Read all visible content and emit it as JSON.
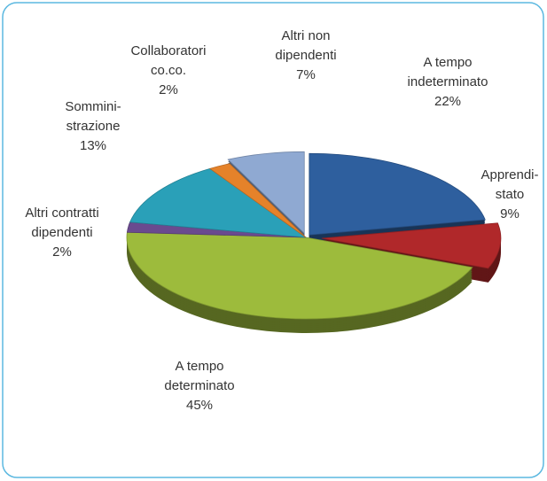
{
  "chart_data": {
    "type": "pie",
    "categories": [
      "A tempo\nindeterminato",
      "Apprendi-\nstato",
      "A tempo\ndeterminato",
      "Altri contratti\ndipendenti",
      "Sommini-\nstrazione",
      "Collaboratori\nco.co.",
      "Altri non\ndipendenti"
    ],
    "values": [
      22,
      9,
      45,
      2,
      13,
      2,
      7
    ],
    "value_labels": [
      "22%",
      "9%",
      "45%",
      "2%",
      "13%",
      "2%",
      "7%"
    ],
    "colors": [
      "#2e5f9e",
      "#b0282a",
      "#9dbb3c",
      "#6a4a8f",
      "#2aa0b8",
      "#e5822a",
      "#8fa9d2"
    ]
  }
}
